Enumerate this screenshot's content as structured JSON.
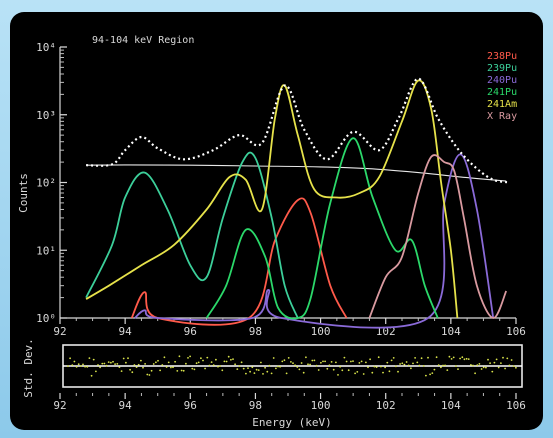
{
  "chart_data": [
    {
      "type": "line",
      "title": "94-104 keV Region",
      "xlabel": "",
      "ylabel": "Counts",
      "xlim": [
        92,
        106
      ],
      "ylim": [
        1,
        10000
      ],
      "yscale": "log",
      "xticks": [
        "92",
        "94",
        "96",
        "98",
        "100",
        "102",
        "104",
        "106"
      ],
      "yticks": [
        {
          "value": 1,
          "label": "10⁰"
        },
        {
          "value": 10,
          "label": "10¹"
        },
        {
          "value": 100,
          "label": "10²"
        },
        {
          "value": 1000,
          "label": "10³"
        },
        {
          "value": 10000,
          "label": "10⁴"
        }
      ],
      "legend": "top-right",
      "series": [
        {
          "name": "238Pu",
          "color": "#ff5a4a",
          "points": [
            [
              94.2,
              1
            ],
            [
              94.6,
              2.4
            ],
            [
              95.0,
              1
            ],
            [
              97.8,
              1
            ],
            [
              98.6,
              14
            ],
            [
              99.3,
              55
            ],
            [
              99.7,
              35
            ],
            [
              100.3,
              3
            ],
            [
              100.8,
              1
            ]
          ]
        },
        {
          "name": "239Pu",
          "color": "#3ccf9a",
          "points": [
            [
              92.8,
              2
            ],
            [
              93.6,
              12
            ],
            [
              94.0,
              60
            ],
            [
              94.6,
              140
            ],
            [
              95.3,
              40
            ],
            [
              96.0,
              6
            ],
            [
              96.5,
              4
            ],
            [
              97.0,
              30
            ],
            [
              97.6,
              200
            ],
            [
              98.0,
              230
            ],
            [
              98.5,
              30
            ],
            [
              98.9,
              3
            ],
            [
              99.3,
              1
            ]
          ]
        },
        {
          "name": "240Pu",
          "color": "#8a6ad8",
          "points": [
            [
              94.3,
              1
            ],
            [
              94.6,
              1.3
            ],
            [
              95.0,
              1
            ],
            [
              97.9,
              1
            ],
            [
              98.4,
              2.6
            ],
            [
              98.8,
              1
            ],
            [
              103.3,
              1
            ],
            [
              103.8,
              50
            ],
            [
              104.3,
              260
            ],
            [
              104.8,
              40
            ],
            [
              105.3,
              1
            ]
          ]
        },
        {
          "name": "241Pu",
          "color": "#2bd86a",
          "points": [
            [
              96.5,
              1
            ],
            [
              97.1,
              3
            ],
            [
              97.7,
              20
            ],
            [
              98.3,
              8
            ],
            [
              98.7,
              1.4
            ],
            [
              99.3,
              1
            ],
            [
              99.7,
              2
            ],
            [
              100.3,
              50
            ],
            [
              101.0,
              450
            ],
            [
              101.6,
              60
            ],
            [
              102.3,
              10
            ],
            [
              102.8,
              14
            ],
            [
              103.2,
              3
            ],
            [
              103.6,
              1
            ]
          ]
        },
        {
          "name": "241Am",
          "color": "#e6e24a",
          "points": [
            [
              92.8,
              1.9
            ],
            [
              93.5,
              3
            ],
            [
              94.5,
              6
            ],
            [
              95.5,
              12
            ],
            [
              96.5,
              40
            ],
            [
              97.2,
              120
            ],
            [
              97.7,
              110
            ],
            [
              98.2,
              40
            ],
            [
              98.6,
              900
            ],
            [
              98.9,
              2700
            ],
            [
              99.3,
              500
            ],
            [
              99.8,
              80
            ],
            [
              100.5,
              60
            ],
            [
              101.2,
              70
            ],
            [
              101.8,
              120
            ],
            [
              102.5,
              800
            ],
            [
              103.0,
              3200
            ],
            [
              103.4,
              1200
            ],
            [
              103.7,
              100
            ],
            [
              104.0,
              10
            ],
            [
              104.2,
              1
            ]
          ]
        },
        {
          "name": "X Ray",
          "color": "#d99aa0",
          "points": [
            [
              101.5,
              1
            ],
            [
              102.0,
              4
            ],
            [
              102.5,
              8
            ],
            [
              103.0,
              70
            ],
            [
              103.4,
              240
            ],
            [
              103.8,
              200
            ],
            [
              104.1,
              150
            ],
            [
              104.4,
              30
            ],
            [
              104.8,
              3
            ],
            [
              105.3,
              1
            ],
            [
              105.7,
              2.5
            ]
          ]
        }
      ],
      "baseline": {
        "color": "#e8e8e8",
        "points": [
          [
            92.8,
            180
          ],
          [
            94.0,
            182
          ],
          [
            96.0,
            180
          ],
          [
            98.0,
            175
          ],
          [
            100.0,
            170
          ],
          [
            101.5,
            160
          ],
          [
            103.0,
            140
          ],
          [
            104.5,
            118
          ],
          [
            105.7,
            105
          ]
        ]
      },
      "total": {
        "color": "#ffffff",
        "points": [
          [
            92.8,
            180
          ],
          [
            93.6,
            185
          ],
          [
            94.0,
            300
          ],
          [
            94.5,
            470
          ],
          [
            95.0,
            320
          ],
          [
            95.8,
            220
          ],
          [
            96.7,
            300
          ],
          [
            97.5,
            500
          ],
          [
            98.2,
            380
          ],
          [
            98.9,
            2700
          ],
          [
            99.5,
            600
          ],
          [
            100.2,
            220
          ],
          [
            101.0,
            560
          ],
          [
            101.8,
            300
          ],
          [
            102.4,
            900
          ],
          [
            103.0,
            3400
          ],
          [
            103.6,
            900
          ],
          [
            104.2,
            320
          ],
          [
            104.8,
            160
          ],
          [
            105.3,
            110
          ],
          [
            105.8,
            100
          ]
        ]
      }
    },
    {
      "type": "scatter",
      "xlabel": "Energy (keV)",
      "ylabel": "Std. Dev.",
      "xlim": [
        92,
        106
      ],
      "ylim": [
        -2,
        2
      ],
      "xticks": [
        "92",
        "94",
        "96",
        "98",
        "100",
        "102",
        "104",
        "106"
      ],
      "color": "#d8e24a"
    }
  ]
}
